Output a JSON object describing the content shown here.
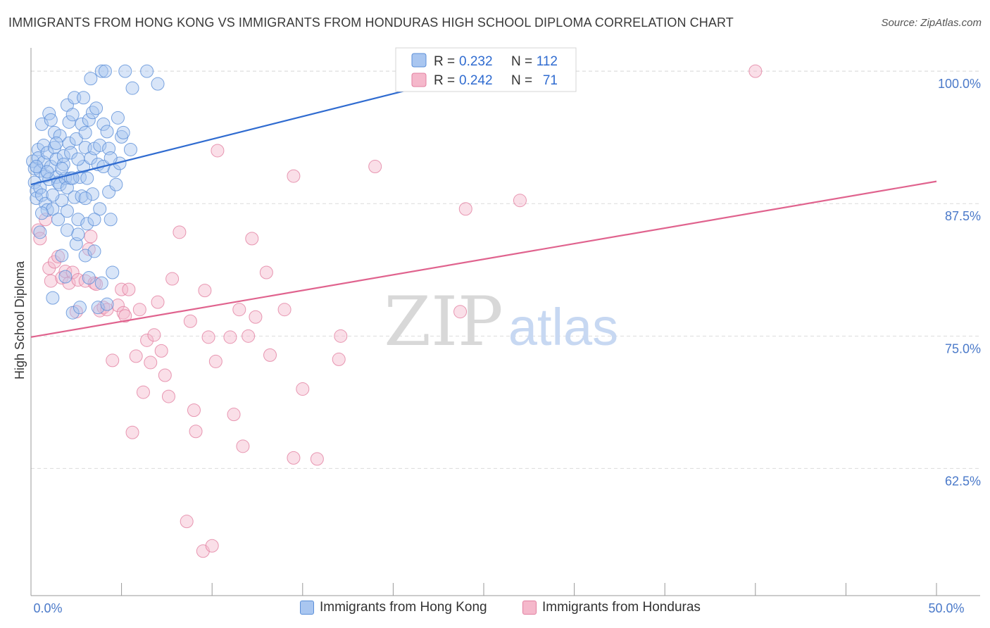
{
  "title": "IMMIGRANTS FROM HONG KONG VS IMMIGRANTS FROM HONDURAS HIGH SCHOOL DIPLOMA CORRELATION CHART",
  "source": "Source: ZipAtlas.com",
  "watermark": {
    "zip": "ZIP",
    "atlas": "atlas"
  },
  "colors": {
    "blue_fill": "#a9c6f0",
    "blue_stroke": "#5b8fd8",
    "blue_line": "#2f6bd0",
    "pink_fill": "#f5b8cb",
    "pink_stroke": "#e27fa0",
    "pink_line": "#e0638e",
    "tick_text": "#4a79c9",
    "grid": "#dcdcdc"
  },
  "legend": {
    "r_label": "R =",
    "n_label": "N =",
    "rows": [
      {
        "r": "0.232",
        "n": "112",
        "color": "blue"
      },
      {
        "r": "0.242",
        "n": "71",
        "color": "pink"
      }
    ]
  },
  "bottom_legend": [
    "Immigrants from Hong Kong",
    "Immigrants from Honduras"
  ],
  "chart_data": {
    "type": "scatter",
    "ylabel": "High School Diploma",
    "xlim": [
      0,
      50
    ],
    "ylim": [
      50.5,
      102.2
    ],
    "x_ticks": [
      {
        "v": 0,
        "label": "0.0%"
      },
      {
        "v": 50,
        "label": "50.0%"
      }
    ],
    "y_ticks": [
      {
        "v": 100,
        "label": "100.0%"
      },
      {
        "v": 87.5,
        "label": "87.5%"
      },
      {
        "v": 75,
        "label": "75.0%"
      },
      {
        "v": 62.5,
        "label": "62.5%"
      }
    ],
    "series": [
      {
        "name": "Immigrants from Hong Kong",
        "color": "blue",
        "trend": {
          "x0": 0,
          "y0": 89.3,
          "x1": 28.0,
          "y1": 101.3
        },
        "points": [
          [
            0.1,
            91.5
          ],
          [
            0.2,
            90.8
          ],
          [
            0.2,
            89.5
          ],
          [
            0.3,
            88.7
          ],
          [
            0.3,
            88.0
          ],
          [
            0.4,
            92.6
          ],
          [
            0.4,
            91.8
          ],
          [
            0.5,
            90.6
          ],
          [
            0.5,
            89.0
          ],
          [
            0.6,
            88.3
          ],
          [
            0.5,
            84.8
          ],
          [
            0.6,
            95.0
          ],
          [
            0.7,
            93.0
          ],
          [
            0.7,
            91.4
          ],
          [
            0.8,
            90.1
          ],
          [
            0.8,
            87.5
          ],
          [
            0.9,
            92.3
          ],
          [
            0.9,
            86.9
          ],
          [
            1.0,
            96.0
          ],
          [
            1.0,
            89.8
          ],
          [
            1.1,
            95.4
          ],
          [
            1.1,
            91.0
          ],
          [
            1.2,
            87.0
          ],
          [
            1.2,
            78.6
          ],
          [
            1.3,
            94.2
          ],
          [
            1.3,
            92.8
          ],
          [
            1.4,
            91.7
          ],
          [
            1.4,
            90.0
          ],
          [
            1.5,
            89.5
          ],
          [
            1.5,
            86.0
          ],
          [
            1.6,
            93.9
          ],
          [
            1.6,
            89.3
          ],
          [
            1.7,
            87.8
          ],
          [
            1.7,
            82.6
          ],
          [
            1.8,
            92.0
          ],
          [
            1.8,
            91.2
          ],
          [
            1.9,
            89.9
          ],
          [
            1.9,
            80.6
          ],
          [
            2.0,
            96.8
          ],
          [
            2.0,
            85.0
          ],
          [
            2.0,
            89.0
          ],
          [
            2.1,
            95.2
          ],
          [
            2.1,
            93.2
          ],
          [
            2.2,
            92.3
          ],
          [
            2.2,
            89.9
          ],
          [
            2.3,
            95.9
          ],
          [
            2.3,
            77.2
          ],
          [
            2.4,
            97.5
          ],
          [
            2.4,
            88.1
          ],
          [
            2.5,
            83.7
          ],
          [
            2.5,
            93.6
          ],
          [
            2.6,
            86.0
          ],
          [
            2.6,
            84.6
          ],
          [
            2.7,
            90.0
          ],
          [
            2.7,
            77.7
          ],
          [
            2.8,
            95.0
          ],
          [
            2.8,
            88.2
          ],
          [
            2.9,
            97.5
          ],
          [
            2.9,
            91.0
          ],
          [
            3.0,
            94.2
          ],
          [
            3.0,
            92.8
          ],
          [
            3.0,
            82.6
          ],
          [
            3.1,
            89.9
          ],
          [
            3.1,
            85.6
          ],
          [
            3.2,
            95.4
          ],
          [
            3.2,
            80.5
          ],
          [
            3.3,
            91.8
          ],
          [
            3.3,
            99.3
          ],
          [
            3.4,
            96.1
          ],
          [
            3.4,
            88.4
          ],
          [
            3.5,
            92.7
          ],
          [
            3.5,
            83.0
          ],
          [
            3.6,
            96.5
          ],
          [
            3.7,
            91.2
          ],
          [
            3.7,
            77.7
          ],
          [
            3.8,
            93.0
          ],
          [
            3.8,
            87.0
          ],
          [
            3.9,
            100.0
          ],
          [
            3.9,
            80.0
          ],
          [
            4.0,
            91.0
          ],
          [
            4.0,
            95.0
          ],
          [
            4.1,
            100.0
          ],
          [
            4.2,
            94.3
          ],
          [
            4.2,
            78.0
          ],
          [
            4.3,
            92.7
          ],
          [
            4.3,
            88.6
          ],
          [
            4.4,
            86.0
          ],
          [
            4.5,
            81.0
          ],
          [
            4.6,
            90.6
          ],
          [
            4.7,
            89.3
          ],
          [
            4.8,
            95.6
          ],
          [
            4.9,
            91.3
          ],
          [
            5.0,
            93.8
          ],
          [
            5.1,
            94.2
          ],
          [
            5.2,
            100.0
          ],
          [
            5.5,
            92.6
          ],
          [
            5.6,
            98.4
          ],
          [
            6.4,
            100.0
          ],
          [
            7.0,
            98.8
          ],
          [
            28.0,
            100.0
          ],
          [
            0.3,
            91.0
          ],
          [
            0.6,
            86.6
          ],
          [
            0.9,
            90.5
          ],
          [
            1.2,
            88.3
          ],
          [
            1.4,
            93.2
          ],
          [
            1.7,
            90.8
          ],
          [
            2.0,
            86.8
          ],
          [
            2.3,
            89.9
          ],
          [
            2.6,
            91.7
          ],
          [
            3.0,
            88.0
          ],
          [
            3.5,
            86.0
          ],
          [
            4.4,
            91.8
          ]
        ]
      },
      {
        "name": "Immigrants from Honduras",
        "color": "pink",
        "trend": {
          "x0": 0,
          "y0": 74.9,
          "x1": 50,
          "y1": 89.6
        },
        "points": [
          [
            0.4,
            85.0
          ],
          [
            0.5,
            84.2
          ],
          [
            0.8,
            86.0
          ],
          [
            1.0,
            81.4
          ],
          [
            1.1,
            80.2
          ],
          [
            1.3,
            82.0
          ],
          [
            1.5,
            82.5
          ],
          [
            1.7,
            80.5
          ],
          [
            1.9,
            81.1
          ],
          [
            2.1,
            80.0
          ],
          [
            2.3,
            81.0
          ],
          [
            2.5,
            77.3
          ],
          [
            2.6,
            80.3
          ],
          [
            3.0,
            80.2
          ],
          [
            3.2,
            83.2
          ],
          [
            3.3,
            84.4
          ],
          [
            3.5,
            80.0
          ],
          [
            3.6,
            79.9
          ],
          [
            3.8,
            77.4
          ],
          [
            4.0,
            77.7
          ],
          [
            4.2,
            77.5
          ],
          [
            4.5,
            72.7
          ],
          [
            4.8,
            77.9
          ],
          [
            5.0,
            79.4
          ],
          [
            5.1,
            77.2
          ],
          [
            5.2,
            76.9
          ],
          [
            5.4,
            79.4
          ],
          [
            5.6,
            65.9
          ],
          [
            5.8,
            73.1
          ],
          [
            6.0,
            77.5
          ],
          [
            6.2,
            69.7
          ],
          [
            6.4,
            74.6
          ],
          [
            6.6,
            72.5
          ],
          [
            6.8,
            75.1
          ],
          [
            7.0,
            78.2
          ],
          [
            7.2,
            73.6
          ],
          [
            7.4,
            71.3
          ],
          [
            7.6,
            69.3
          ],
          [
            7.8,
            80.4
          ],
          [
            8.2,
            84.8
          ],
          [
            8.6,
            57.5
          ],
          [
            8.8,
            76.4
          ],
          [
            9.0,
            68.0
          ],
          [
            9.1,
            66.0
          ],
          [
            9.5,
            54.7
          ],
          [
            9.6,
            79.3
          ],
          [
            9.8,
            74.9
          ],
          [
            10.0,
            55.2
          ],
          [
            10.2,
            72.6
          ],
          [
            10.3,
            92.5
          ],
          [
            11.0,
            74.9
          ],
          [
            11.2,
            67.6
          ],
          [
            11.5,
            77.5
          ],
          [
            11.7,
            64.6
          ],
          [
            12.0,
            75.0
          ],
          [
            12.2,
            84.2
          ],
          [
            12.4,
            76.8
          ],
          [
            13.0,
            81.0
          ],
          [
            13.2,
            73.2
          ],
          [
            14.0,
            77.5
          ],
          [
            14.5,
            90.1
          ],
          [
            14.5,
            63.5
          ],
          [
            15.0,
            70.0
          ],
          [
            15.8,
            63.4
          ],
          [
            17.0,
            72.8
          ],
          [
            17.1,
            75.0
          ],
          [
            19.0,
            91.0
          ],
          [
            23.7,
            77.3
          ],
          [
            24.0,
            87.0
          ],
          [
            27.0,
            87.8
          ],
          [
            40.0,
            100.0
          ]
        ]
      }
    ]
  }
}
